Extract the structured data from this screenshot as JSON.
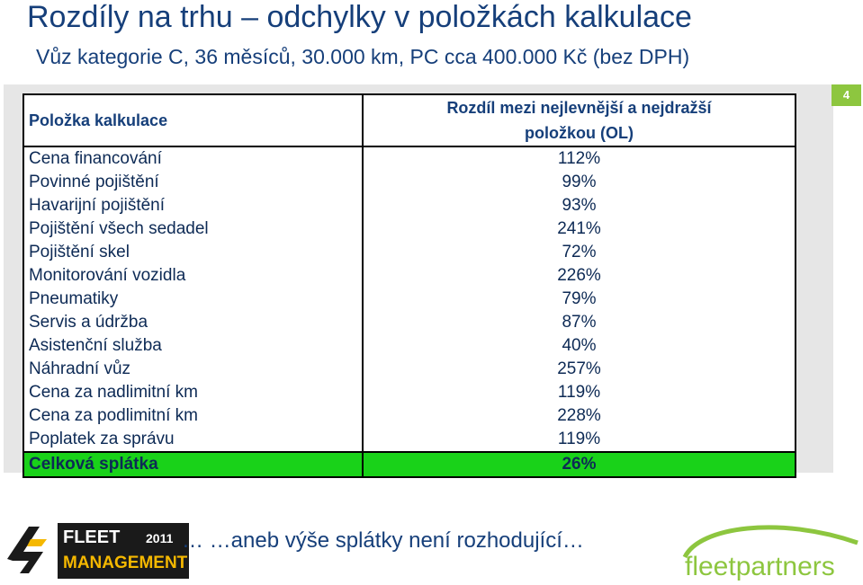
{
  "slide": {
    "title": "Rozdíly na trhu – odchylky v položkách kalkulace",
    "subtitle": "Vůz kategorie C, 36 měsíců, 30.000 km, PC cca 400.000 Kč (bez DPH)",
    "page_number": "4"
  },
  "table": {
    "header_item": "Položka kalkulace",
    "header_diff_line1": "Rozdíl mezi nejlevnější a nejdražší",
    "header_diff_line2": "položkou (OL)",
    "rows": [
      {
        "item": "Cena financování",
        "diff": "112%"
      },
      {
        "item": "Povinné pojištění",
        "diff": "99%"
      },
      {
        "item": "Havarijní pojištění",
        "diff": "93%"
      },
      {
        "item": "Pojištění všech sedadel",
        "diff": "241%"
      },
      {
        "item": "Pojištění skel",
        "diff": "72%"
      },
      {
        "item": "Monitorování vozidla",
        "diff": "226%"
      },
      {
        "item": "Pneumatiky",
        "diff": "79%"
      },
      {
        "item": "Servis a údržba",
        "diff": "87%"
      },
      {
        "item": "Asistenční služba",
        "diff": "40%"
      },
      {
        "item": "Náhradní vůz",
        "diff": "257%"
      },
      {
        "item": "Cena za nadlimitní km",
        "diff": "119%"
      },
      {
        "item": "Cena za podlimitní km",
        "diff": "228%"
      },
      {
        "item": "Poplatek za správu",
        "diff": "119%"
      }
    ],
    "total": {
      "item": "Celková splátka",
      "diff": "26%"
    }
  },
  "footer": {
    "tagline": "… …aneb výše splátky není rozhodující…",
    "fleet_logo_line1": "FLEET",
    "fleet_logo_year": "2011",
    "fleet_logo_line2": "MANAGEMENT",
    "partners_logo": "fleetpartners"
  },
  "colors": {
    "title": "#163f7a",
    "accent_green": "#8dc63f",
    "total_row": "#19d219",
    "panel": "#e6e6e6",
    "fleet_logo_bg": "#1a1a1a",
    "fleet_logo_gold": "#f5b800"
  }
}
